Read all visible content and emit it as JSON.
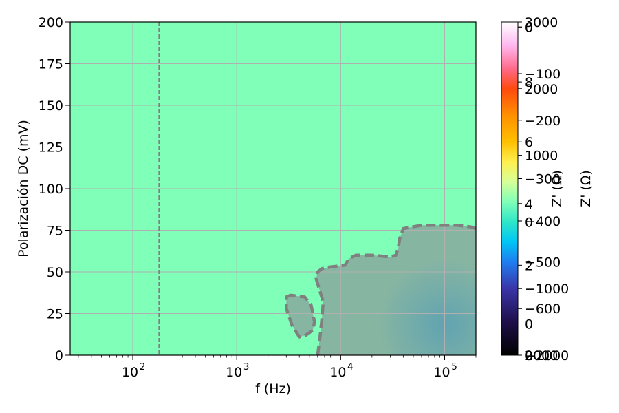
{
  "chart_data": {
    "type": "heatmap",
    "title": "",
    "xlabel": "f (Hz)",
    "ylabel": "Polarización DC (mV)",
    "xscale": "log",
    "xlim": [
      25,
      200000
    ],
    "ylim": [
      0,
      200
    ],
    "grid": true,
    "background_color": "#80ffb8",
    "region_color": "#86b5a2",
    "hotspot_color": "#5aa0b4",
    "boundary_color": "#808080",
    "x_tick_labels": [
      "10",
      "10",
      "10",
      "10"
    ],
    "x_tick_exponents": [
      "2",
      "3",
      "4",
      "5"
    ],
    "x_tick_values": [
      100,
      1000,
      10000,
      100000
    ],
    "y_ticks": [
      0,
      25,
      50,
      75,
      100,
      125,
      150,
      175,
      200
    ],
    "y_tick_labels": [
      "0",
      "25",
      "50",
      "75",
      "100",
      "125",
      "150",
      "175",
      "200"
    ],
    "vertical_marker_f": 180,
    "main_region_boundary": [
      [
        6000,
        0
      ],
      [
        6300,
        10
      ],
      [
        6600,
        22
      ],
      [
        6800,
        32
      ],
      [
        6200,
        40
      ],
      [
        5800,
        46
      ],
      [
        6000,
        50
      ],
      [
        6600,
        52
      ],
      [
        8000,
        53
      ],
      [
        11000,
        54
      ],
      [
        12000,
        58
      ],
      [
        14000,
        60
      ],
      [
        20000,
        60
      ],
      [
        30000,
        59
      ],
      [
        34000,
        60
      ],
      [
        36000,
        65
      ],
      [
        37000,
        70
      ],
      [
        40000,
        76
      ],
      [
        60000,
        78
      ],
      [
        100000,
        78
      ],
      [
        130000,
        78
      ],
      [
        180000,
        77
      ],
      [
        200000,
        76
      ]
    ],
    "island_boundary": [
      [
        3000,
        35
      ],
      [
        3300,
        36
      ],
      [
        4500,
        35
      ],
      [
        5200,
        30
      ],
      [
        5600,
        20
      ],
      [
        5400,
        15
      ],
      [
        4600,
        12
      ],
      [
        4000,
        11
      ],
      [
        3400,
        18
      ],
      [
        3000,
        28
      ],
      [
        3000,
        35
      ]
    ],
    "colorbars": [
      {
        "label": "Z' (Ω)",
        "tick_labels": [
          "−2000",
          "0",
          "−600",
          "−1000",
          "−500",
          "−400",
          "−300",
          "−200",
          "−100",
          "0"
        ],
        "tick_values_fraction": [
          0.0,
          0.094,
          0.14,
          0.2,
          0.28,
          0.403,
          0.53,
          0.705,
          0.845,
          0.985
        ]
      },
      {
        "label": "Z' (Ω)",
        "tick_labels": [
          "0",
          "2",
          "4",
          "6",
          "8",
          "0"
        ],
        "tick_values_fraction": [
          0.0,
          0.27,
          0.455,
          0.64,
          0.82,
          0.985
        ]
      },
      {
        "label": "Z' (Ω)",
        "tick_labels": [
          "2000",
          "0",
          "1000",
          "2000",
          "3000"
        ],
        "tick_values_fraction": [
          0.0,
          0.4,
          0.6,
          0.8,
          1.0
        ]
      }
    ],
    "colorbar_stops": [
      {
        "offset": 0.0,
        "color": "#000000"
      },
      {
        "offset": 0.1,
        "color": "#1f0f4a"
      },
      {
        "offset": 0.2,
        "color": "#3a35a8"
      },
      {
        "offset": 0.28,
        "color": "#1f7df0"
      },
      {
        "offset": 0.34,
        "color": "#00c6f5"
      },
      {
        "offset": 0.4,
        "color": "#2fe6c8"
      },
      {
        "offset": 0.46,
        "color": "#80ffb8"
      },
      {
        "offset": 0.52,
        "color": "#d6ff99"
      },
      {
        "offset": 0.58,
        "color": "#ffef50"
      },
      {
        "offset": 0.64,
        "color": "#ffc000"
      },
      {
        "offset": 0.72,
        "color": "#ff9000"
      },
      {
        "offset": 0.8,
        "color": "#ff4a10"
      },
      {
        "offset": 0.86,
        "color": "#ff6a8a"
      },
      {
        "offset": 0.93,
        "color": "#ffb8f0"
      },
      {
        "offset": 1.0,
        "color": "#ffffff"
      }
    ]
  }
}
